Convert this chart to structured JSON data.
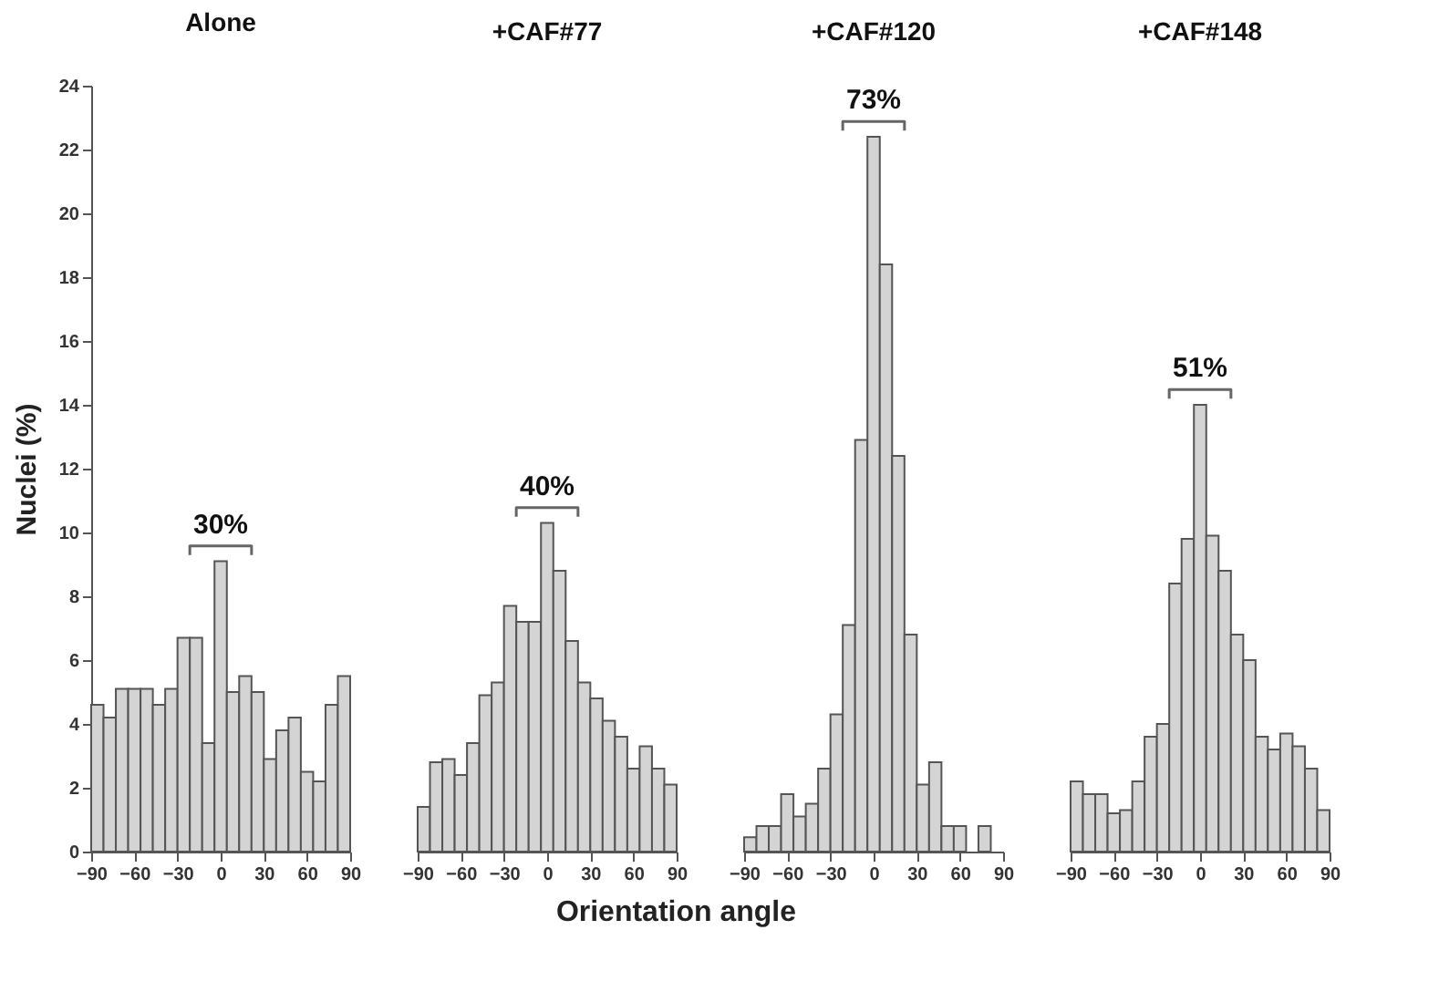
{
  "chart_data": [
    {
      "type": "histogram",
      "title": "Alone",
      "ylabel": "Nuclei (%)",
      "color": "#d4d4d4",
      "bins": [
        -90,
        -81.43,
        -72.86,
        -64.29,
        -55.71,
        -47.14,
        -38.57,
        -30,
        -21.43,
        -12.86,
        -4.29,
        4.29,
        12.86,
        21.43,
        30,
        38.57,
        47.14,
        55.71,
        64.29,
        72.86,
        81.43,
        90
      ],
      "values": [
        4.6,
        4.2,
        5.1,
        5.1,
        5.1,
        4.6,
        5.1,
        6.7,
        6.7,
        3.4,
        9.1,
        5.0,
        5.5,
        5.0,
        2.9,
        3.8,
        4.2,
        2.5,
        2.2,
        4.6,
        5.5
      ],
      "xlim": [
        -90,
        90
      ],
      "xticks": [
        -90,
        -60,
        -30,
        0,
        30,
        60,
        90
      ],
      "ylim": [
        0,
        24
      ],
      "yticks": [
        0,
        2,
        4,
        6,
        8,
        10,
        12,
        14,
        16,
        18,
        20,
        22,
        24
      ],
      "annotations": [
        "30%"
      ]
    },
    {
      "type": "histogram",
      "title": "+CAF#77",
      "xlabel": "Orientation angle",
      "color": "#d4d4d4",
      "bins": [
        -90,
        -81.43,
        -72.86,
        -64.29,
        -55.71,
        -47.14,
        -38.57,
        -30,
        -21.43,
        -12.86,
        -4.29,
        4.29,
        12.86,
        21.43,
        30,
        38.57,
        47.14,
        55.71,
        64.29,
        72.86,
        81.43,
        90
      ],
      "values": [
        1.4,
        2.8,
        2.9,
        2.4,
        3.4,
        4.9,
        5.3,
        7.7,
        7.2,
        7.2,
        10.3,
        8.8,
        6.6,
        5.3,
        4.8,
        4.1,
        3.6,
        2.6,
        3.3,
        2.6,
        2.1
      ],
      "xlim": [
        -90,
        90
      ],
      "xticks": [
        -90,
        -60,
        -30,
        0,
        30,
        60,
        90
      ],
      "ylim": [
        0,
        24
      ],
      "yticks": [
        0,
        2,
        4,
        6,
        8,
        10,
        12,
        14,
        16,
        18,
        20,
        22,
        24
      ],
      "tick_labels": "x",
      "annotations": [
        "40%"
      ]
    },
    {
      "type": "histogram",
      "title": "+CAF#120",
      "color": "#d4d4d4",
      "bins": [
        -90,
        -81.43,
        -72.86,
        -64.29,
        -55.71,
        -47.14,
        -38.57,
        -30,
        -21.43,
        -12.86,
        -4.29,
        4.29,
        12.86,
        21.43,
        30,
        38.57,
        47.14,
        55.71,
        64.29,
        72.86,
        81.43,
        90
      ],
      "values": [
        0.45,
        0.8,
        0.8,
        1.8,
        1.1,
        1.5,
        2.6,
        4.3,
        7.1,
        12.9,
        22.4,
        18.4,
        12.4,
        6.8,
        2.1,
        2.8,
        0.8,
        0.8,
        0,
        0.8,
        0
      ],
      "xlim": [
        -90,
        90
      ],
      "xticks": [
        -90,
        -60,
        -30,
        0,
        30,
        60,
        90
      ],
      "ylim": [
        0,
        24
      ],
      "yticks": [
        0,
        2,
        4,
        6,
        8,
        10,
        12,
        14,
        16,
        18,
        20,
        22,
        24
      ],
      "tick_labels": "x",
      "annotations": [
        "73%"
      ]
    },
    {
      "type": "histogram",
      "title": "+CAF#148",
      "color": "#d4d4d4",
      "bins": [
        -90,
        -81.43,
        -72.86,
        -64.29,
        -55.71,
        -47.14,
        -38.57,
        -30,
        -21.43,
        -12.86,
        -4.29,
        4.29,
        12.86,
        21.43,
        30,
        38.57,
        47.14,
        55.71,
        64.29,
        72.86,
        81.43,
        90
      ],
      "values": [
        2.2,
        1.8,
        1.8,
        1.2,
        1.3,
        2.2,
        3.6,
        4.0,
        8.4,
        9.8,
        14.0,
        9.9,
        8.8,
        6.8,
        6.0,
        3.6,
        3.2,
        3.7,
        3.3,
        2.6,
        1.3
      ],
      "xlim": [
        -90,
        90
      ],
      "xticks": [
        -90,
        -60,
        -30,
        0,
        30,
        60,
        90
      ],
      "ylim": [
        0,
        24
      ],
      "yticks": [
        0,
        2,
        4,
        6,
        8,
        10,
        12,
        14,
        16,
        18,
        20,
        22,
        24
      ],
      "tick_labels": "x",
      "annotations": [
        "51%"
      ]
    }
  ]
}
